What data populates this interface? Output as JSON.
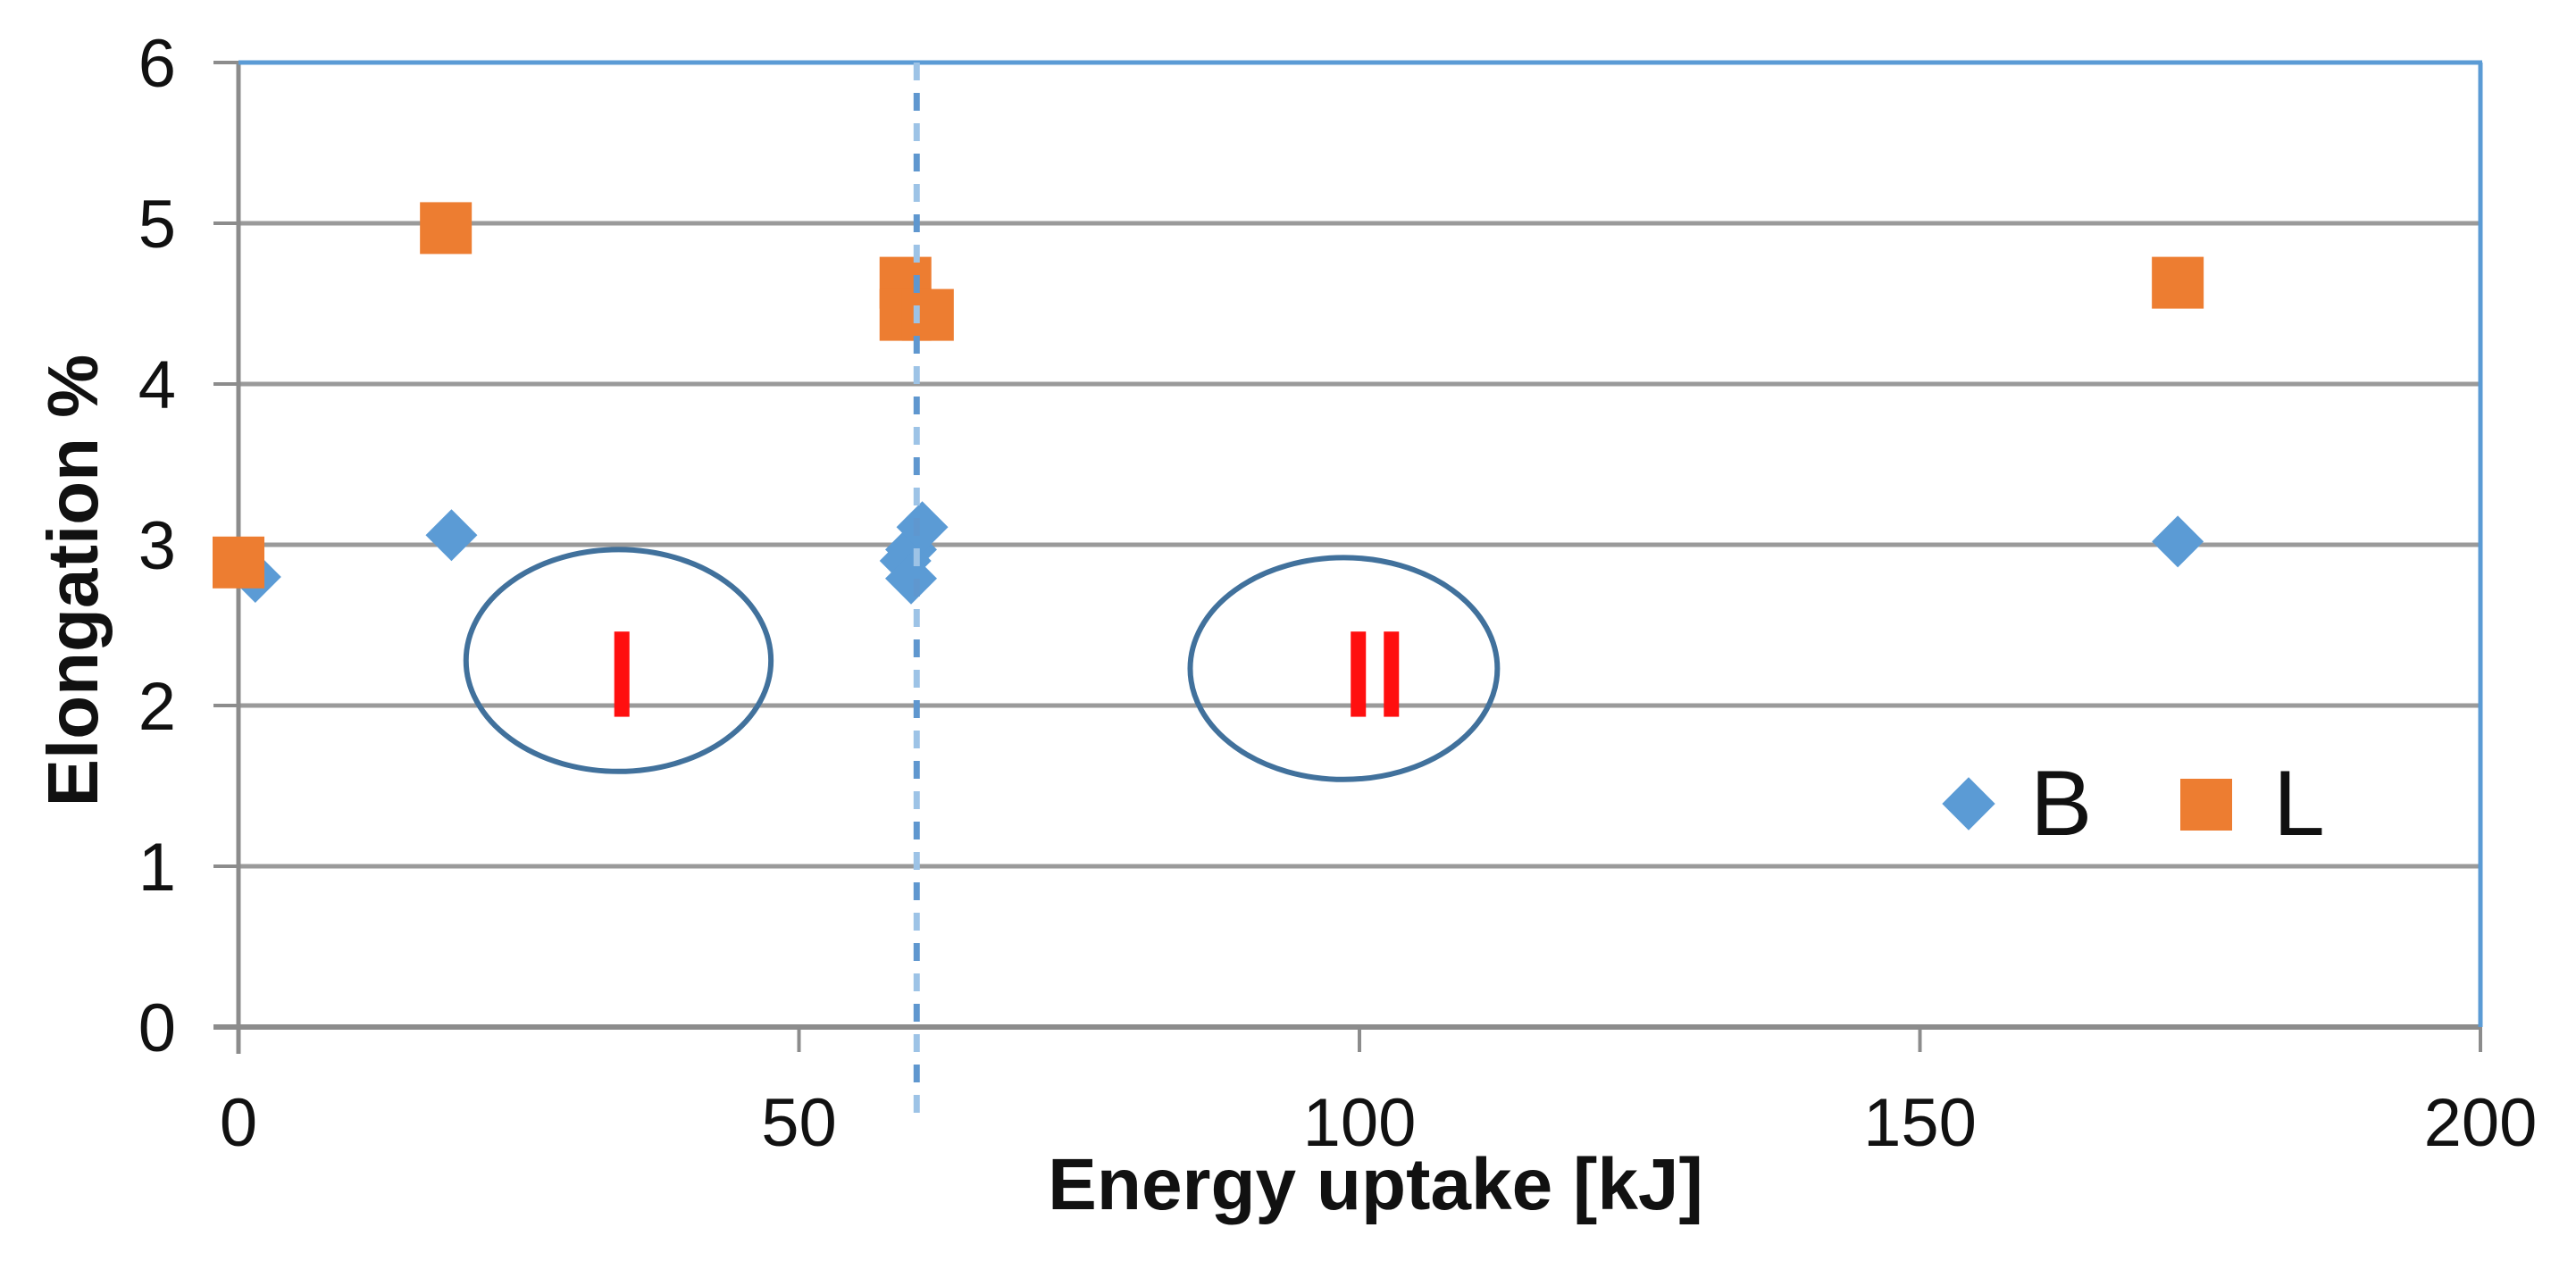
{
  "chart_data": {
    "type": "scatter",
    "title": "",
    "xlabel": "Energy uptake  [kJ]",
    "ylabel": "Elongation %",
    "xlim": [
      0,
      200
    ],
    "ylim": [
      0,
      6
    ],
    "xticks": [
      0,
      50,
      100,
      150,
      200
    ],
    "yticks": [
      0,
      1,
      2,
      3,
      4,
      5,
      6
    ],
    "grid": "horizontal-only",
    "legend_position": "inside-lower-right",
    "series": [
      {
        "name": "B",
        "marker": "diamond",
        "color": "#5b9bd5",
        "points": [
          [
            1.5,
            2.8
          ],
          [
            19,
            3.06
          ],
          [
            59.5,
            2.9
          ],
          [
            60,
            2.97
          ],
          [
            60,
            2.79
          ],
          [
            61,
            3.11
          ],
          [
            173,
            3.02
          ]
        ]
      },
      {
        "name": "L",
        "marker": "square",
        "color": "#ed7d31",
        "points": [
          [
            0,
            2.89
          ],
          [
            18.5,
            4.97
          ],
          [
            59.5,
            4.63
          ],
          [
            59.5,
            4.43
          ],
          [
            61.5,
            4.43
          ],
          [
            173,
            4.63
          ]
        ]
      }
    ],
    "annotations": {
      "vline": {
        "x": 60.5,
        "style": "dash-dot",
        "extends_below_axis": true
      },
      "ellipses": [
        {
          "label": "I",
          "cx": 33.9,
          "cy": 2.28,
          "rx": 13.6,
          "ry": 0.69
        },
        {
          "label": "II",
          "cx": 98.6,
          "cy": 2.23,
          "rx": 13.7,
          "ry": 0.69
        }
      ],
      "numerals": [
        {
          "text": "I",
          "bars_x": [
            34.2
          ],
          "y_top": 2.46,
          "y_bottom": 1.93
        },
        {
          "text": "II",
          "bars_x": [
            99.9,
            102.85
          ],
          "y_top": 2.46,
          "y_bottom": 1.93
        }
      ]
    }
  },
  "colors": {
    "series_b": "#5b9bd5",
    "series_l": "#ed7d31",
    "grid": "#9a9a9a",
    "axis": "#8c8c8c",
    "plot_border_blue": "#5b9bd5",
    "ellipse_stroke": "#41719c",
    "numeral_red": "#ff0f0f",
    "vline_light": "#9dc3e6",
    "vline_dark": "#5f97cf",
    "text": "#111111"
  }
}
